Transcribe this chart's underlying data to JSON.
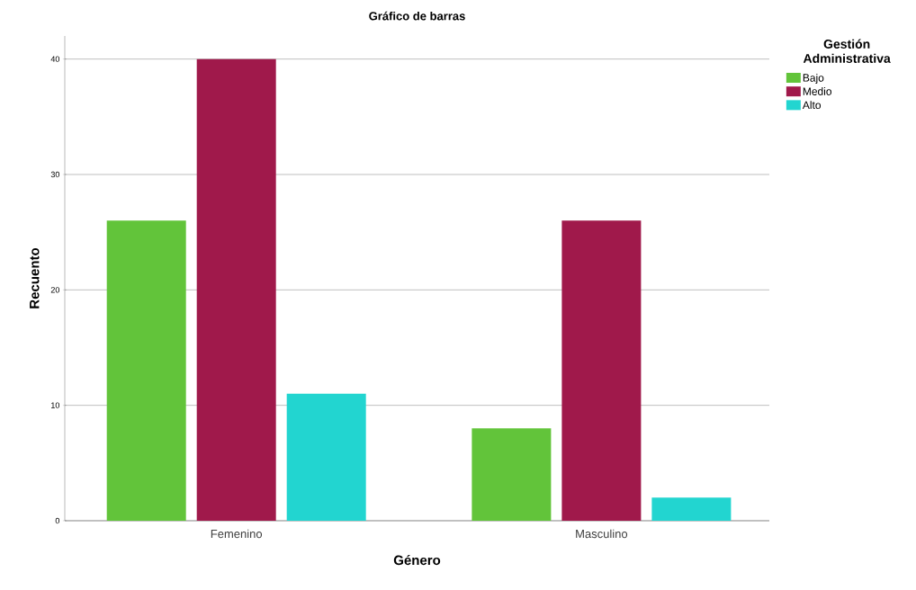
{
  "chart_data": {
    "type": "bar",
    "title": "Gráfico de barras",
    "xlabel": "Género",
    "ylabel": "Recuento",
    "legend_title": "Gestión Administrativa",
    "categories": [
      "Femenino",
      "Masculino"
    ],
    "series": [
      {
        "name": "Bajo",
        "color": "#62c43a",
        "values": [
          26,
          8
        ]
      },
      {
        "name": "Medio",
        "color": "#a0194b",
        "values": [
          40,
          26
        ]
      },
      {
        "name": "Alto",
        "color": "#22d5d0",
        "values": [
          11,
          2
        ]
      }
    ],
    "ylim": [
      0,
      42
    ],
    "yticks": [
      0,
      10,
      20,
      30,
      40
    ],
    "grid": "y",
    "legend": "top right"
  }
}
